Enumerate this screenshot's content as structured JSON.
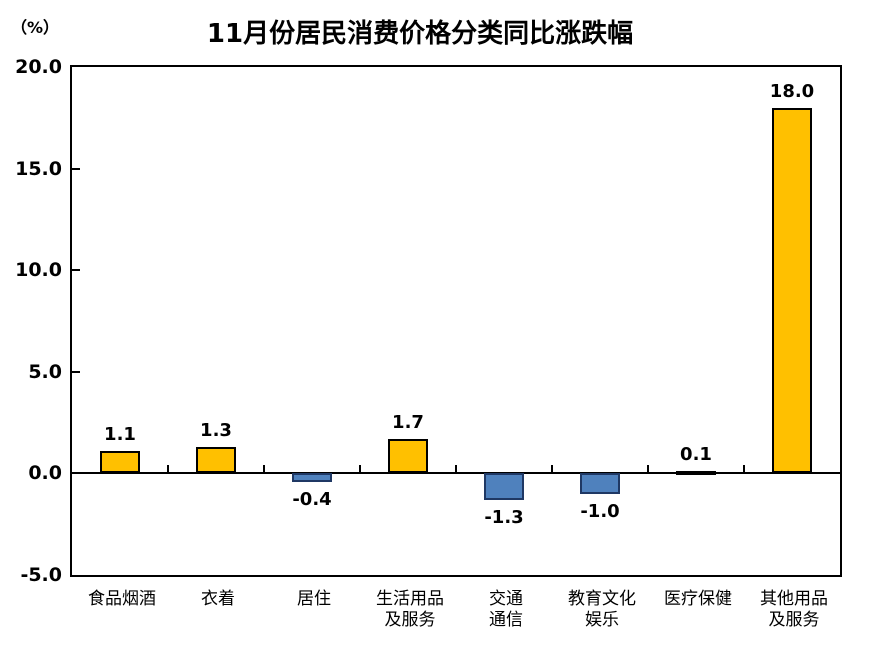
{
  "chart_data": {
    "type": "bar",
    "title": "11月份居民消费价格分类同比涨跌幅",
    "unit_label": "（%）",
    "categories": [
      [
        "食品烟酒"
      ],
      [
        "衣着"
      ],
      [
        "居住"
      ],
      [
        "生活用品",
        "及服务"
      ],
      [
        "交通",
        "通信"
      ],
      [
        "教育文化",
        "娱乐"
      ],
      [
        "医疗保健"
      ],
      [
        "其他用品",
        "及服务"
      ]
    ],
    "values": [
      1.1,
      1.3,
      -0.4,
      1.7,
      -1.3,
      -1.0,
      0.1,
      18.0
    ],
    "value_labels": [
      "1.1",
      "1.3",
      "-0.4",
      "1.7",
      "-1.3",
      "-1.0",
      "0.1",
      "18.0"
    ],
    "ylim": [
      -5.0,
      20.0
    ],
    "ytick_values": [
      20,
      15,
      10,
      5,
      0,
      -5
    ],
    "ytick_labels": [
      "20.0",
      "15.0",
      "10.0",
      "5.0",
      "0.0",
      "-5.0"
    ],
    "grid": false,
    "legend_position": "none",
    "colors": {
      "positive_fill": "#FFC000",
      "positive_border": "#000000",
      "negative_fill": "#4F81BD",
      "negative_border": "#1F3864",
      "axis": "#000000",
      "text": "#000000"
    }
  }
}
